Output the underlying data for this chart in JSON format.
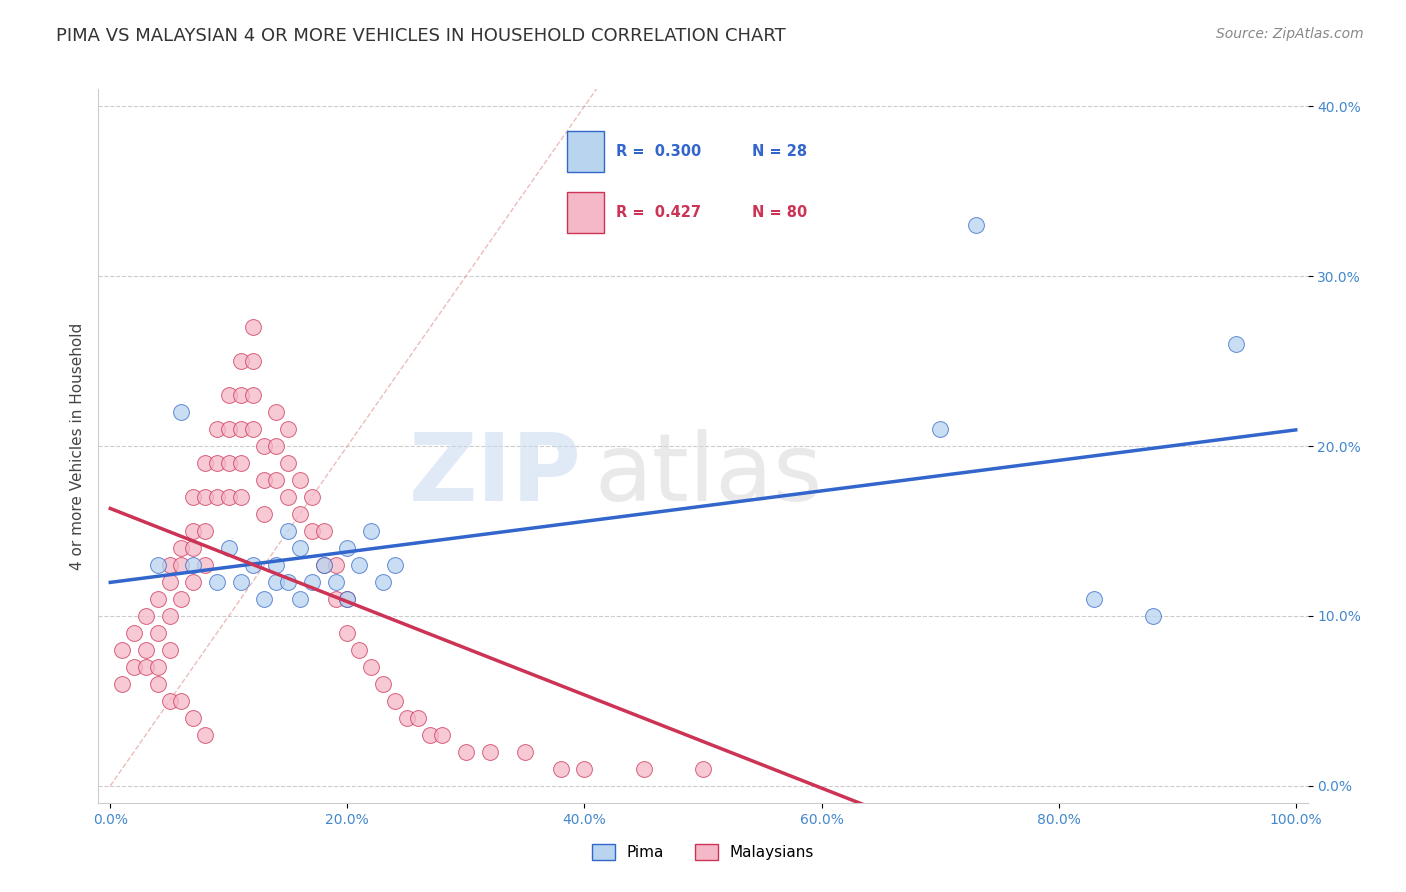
{
  "title": "PIMA VS MALAYSIAN 4 OR MORE VEHICLES IN HOUSEHOLD CORRELATION CHART",
  "source": "Source: ZipAtlas.com",
  "ylabel": "4 or more Vehicles in Household",
  "xlim": [
    0,
    100
  ],
  "ylim": [
    0,
    40
  ],
  "pima_R": "0.300",
  "pima_N": "28",
  "malay_R": "0.427",
  "malay_N": "80",
  "pima_color": "#b8d4ee",
  "malay_color": "#f5b8c8",
  "pima_line_color": "#3366cc",
  "malay_line_color": "#cc3355",
  "diag_line_color": "#e09090",
  "watermark_zip": "ZIP",
  "watermark_atlas": "atlas",
  "pima_x": [
    4,
    6,
    7,
    9,
    10,
    11,
    12,
    13,
    14,
    14,
    15,
    15,
    16,
    16,
    17,
    18,
    19,
    20,
    20,
    21,
    22,
    23,
    24,
    70,
    73,
    83,
    88,
    95
  ],
  "pima_y": [
    13,
    22,
    13,
    12,
    14,
    12,
    13,
    11,
    13,
    12,
    15,
    12,
    14,
    11,
    12,
    13,
    12,
    14,
    11,
    13,
    15,
    12,
    13,
    21,
    33,
    11,
    10,
    26
  ],
  "malay_x": [
    1,
    1,
    2,
    2,
    3,
    3,
    3,
    4,
    4,
    4,
    5,
    5,
    5,
    5,
    6,
    6,
    6,
    7,
    7,
    7,
    7,
    8,
    8,
    8,
    8,
    9,
    9,
    9,
    10,
    10,
    10,
    10,
    11,
    11,
    11,
    11,
    11,
    12,
    12,
    12,
    12,
    13,
    13,
    13,
    14,
    14,
    14,
    15,
    15,
    15,
    16,
    16,
    17,
    17,
    18,
    18,
    19,
    19,
    20,
    20,
    21,
    22,
    23,
    24,
    25,
    26,
    27,
    28,
    30,
    32,
    35,
    38,
    40,
    45,
    50,
    4,
    5,
    6,
    7,
    8
  ],
  "malay_y": [
    8,
    6,
    9,
    7,
    10,
    8,
    7,
    11,
    9,
    7,
    13,
    12,
    10,
    8,
    14,
    13,
    11,
    17,
    15,
    14,
    12,
    19,
    17,
    15,
    13,
    21,
    19,
    17,
    23,
    21,
    19,
    17,
    25,
    23,
    21,
    19,
    17,
    27,
    25,
    23,
    21,
    20,
    18,
    16,
    22,
    20,
    18,
    21,
    19,
    17,
    18,
    16,
    17,
    15,
    15,
    13,
    13,
    11,
    11,
    9,
    8,
    7,
    6,
    5,
    4,
    4,
    3,
    3,
    2,
    2,
    2,
    1,
    1,
    1,
    1,
    6,
    5,
    5,
    4,
    3
  ]
}
